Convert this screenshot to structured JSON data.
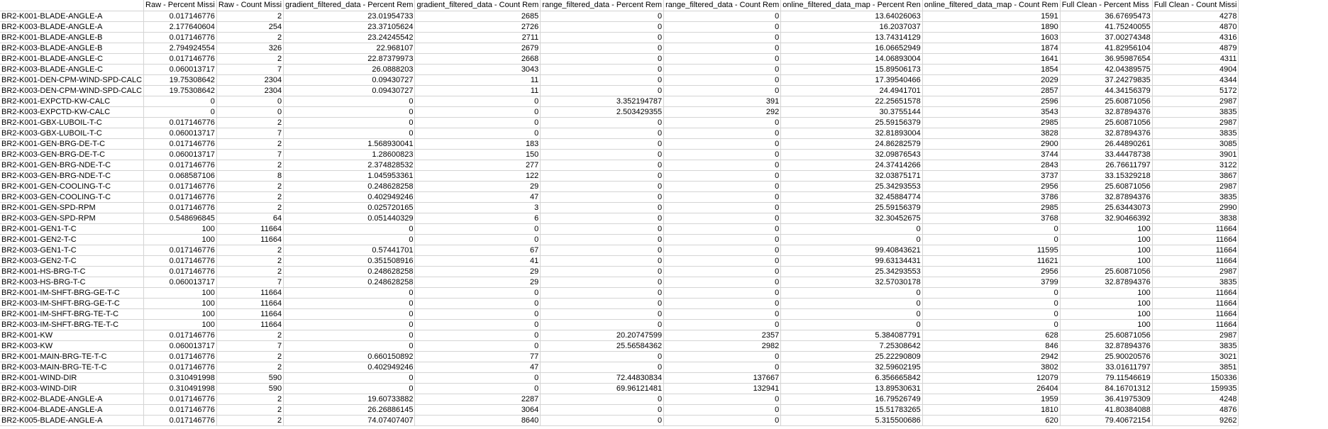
{
  "headers": [
    "",
    "Raw - Percent Missi",
    "Raw - Count Missi",
    "gradient_filtered_data - Percent Rem",
    "gradient_filtered_data - Count Rem",
    "range_filtered_data - Percent Rem",
    "range_filtered_data - Count Rem",
    "online_filtered_data_map - Percent Ren",
    "online_filtered_data_map - Count Rem",
    "Full Clean - Percent Miss",
    "Full Clean - Count Missi"
  ],
  "rows": [
    [
      "BR2-K001-BLADE-ANGLE-A",
      "0.017146776",
      "2",
      "23.01954733",
      "2685",
      "0",
      "0",
      "13.64026063",
      "1591",
      "36.67695473",
      "4278"
    ],
    [
      "BR2-K003-BLADE-ANGLE-A",
      "2.177640604",
      "254",
      "23.37105624",
      "2726",
      "0",
      "0",
      "16.2037037",
      "1890",
      "41.75240055",
      "4870"
    ],
    [
      "BR2-K001-BLADE-ANGLE-B",
      "0.017146776",
      "2",
      "23.24245542",
      "2711",
      "0",
      "0",
      "13.74314129",
      "1603",
      "37.00274348",
      "4316"
    ],
    [
      "BR2-K003-BLADE-ANGLE-B",
      "2.794924554",
      "326",
      "22.968107",
      "2679",
      "0",
      "0",
      "16.06652949",
      "1874",
      "41.82956104",
      "4879"
    ],
    [
      "BR2-K001-BLADE-ANGLE-C",
      "0.017146776",
      "2",
      "22.87379973",
      "2668",
      "0",
      "0",
      "14.06893004",
      "1641",
      "36.95987654",
      "4311"
    ],
    [
      "BR2-K003-BLADE-ANGLE-C",
      "0.060013717",
      "7",
      "26.0888203",
      "3043",
      "0",
      "0",
      "15.89506173",
      "1854",
      "42.04389575",
      "4904"
    ],
    [
      "BR2-K001-DEN-CPM-WIND-SPD-CALC",
      "19.75308642",
      "2304",
      "0.09430727",
      "11",
      "0",
      "0",
      "17.39540466",
      "2029",
      "37.24279835",
      "4344"
    ],
    [
      "BR2-K003-DEN-CPM-WIND-SPD-CALC",
      "19.75308642",
      "2304",
      "0.09430727",
      "11",
      "0",
      "0",
      "24.4941701",
      "2857",
      "44.34156379",
      "5172"
    ],
    [
      "BR2-K001-EXPCTD-KW-CALC",
      "0",
      "0",
      "0",
      "0",
      "3.352194787",
      "391",
      "22.25651578",
      "2596",
      "25.60871056",
      "2987"
    ],
    [
      "BR2-K003-EXPCTD-KW-CALC",
      "0",
      "0",
      "0",
      "0",
      "2.503429355",
      "292",
      "30.3755144",
      "3543",
      "32.87894376",
      "3835"
    ],
    [
      "BR2-K001-GBX-LUBOIL-T-C",
      "0.017146776",
      "2",
      "0",
      "0",
      "0",
      "0",
      "25.59156379",
      "2985",
      "25.60871056",
      "2987"
    ],
    [
      "BR2-K003-GBX-LUBOIL-T-C",
      "0.060013717",
      "7",
      "0",
      "0",
      "0",
      "0",
      "32.81893004",
      "3828",
      "32.87894376",
      "3835"
    ],
    [
      "BR2-K001-GEN-BRG-DE-T-C",
      "0.017146776",
      "2",
      "1.568930041",
      "183",
      "0",
      "0",
      "24.86282579",
      "2900",
      "26.44890261",
      "3085"
    ],
    [
      "BR2-K003-GEN-BRG-DE-T-C",
      "0.060013717",
      "7",
      "1.28600823",
      "150",
      "0",
      "0",
      "32.09876543",
      "3744",
      "33.44478738",
      "3901"
    ],
    [
      "BR2-K001-GEN-BRG-NDE-T-C",
      "0.017146776",
      "2",
      "2.374828532",
      "277",
      "0",
      "0",
      "24.37414266",
      "2843",
      "26.76611797",
      "3122"
    ],
    [
      "BR2-K003-GEN-BRG-NDE-T-C",
      "0.068587106",
      "8",
      "1.045953361",
      "122",
      "0",
      "0",
      "32.03875171",
      "3737",
      "33.15329218",
      "3867"
    ],
    [
      "BR2-K001-GEN-COOLING-T-C",
      "0.017146776",
      "2",
      "0.248628258",
      "29",
      "0",
      "0",
      "25.34293553",
      "2956",
      "25.60871056",
      "2987"
    ],
    [
      "BR2-K003-GEN-COOLING-T-C",
      "0.017146776",
      "2",
      "0.402949246",
      "47",
      "0",
      "0",
      "32.45884774",
      "3786",
      "32.87894376",
      "3835"
    ],
    [
      "BR2-K001-GEN-SPD-RPM",
      "0.017146776",
      "2",
      "0.025720165",
      "3",
      "0",
      "0",
      "25.59156379",
      "2985",
      "25.63443073",
      "2990"
    ],
    [
      "BR2-K003-GEN-SPD-RPM",
      "0.548696845",
      "64",
      "0.051440329",
      "6",
      "0",
      "0",
      "32.30452675",
      "3768",
      "32.90466392",
      "3838"
    ],
    [
      "BR2-K001-GEN1-T-C",
      "100",
      "11664",
      "0",
      "0",
      "0",
      "0",
      "0",
      "0",
      "100",
      "11664"
    ],
    [
      "BR2-K001-GEN2-T-C",
      "100",
      "11664",
      "0",
      "0",
      "0",
      "0",
      "0",
      "0",
      "100",
      "11664"
    ],
    [
      "BR2-K003-GEN1-T-C",
      "0.017146776",
      "2",
      "0.57441701",
      "67",
      "0",
      "0",
      "99.40843621",
      "11595",
      "100",
      "11664"
    ],
    [
      "BR2-K003-GEN2-T-C",
      "0.017146776",
      "2",
      "0.351508916",
      "41",
      "0",
      "0",
      "99.63134431",
      "11621",
      "100",
      "11664"
    ],
    [
      "BR2-K001-HS-BRG-T-C",
      "0.017146776",
      "2",
      "0.248628258",
      "29",
      "0",
      "0",
      "25.34293553",
      "2956",
      "25.60871056",
      "2987"
    ],
    [
      "BR2-K003-HS-BRG-T-C",
      "0.060013717",
      "7",
      "0.248628258",
      "29",
      "0",
      "0",
      "32.57030178",
      "3799",
      "32.87894376",
      "3835"
    ],
    [
      "BR2-K001-IM-SHFT-BRG-GE-T-C",
      "100",
      "11664",
      "0",
      "0",
      "0",
      "0",
      "0",
      "0",
      "100",
      "11664"
    ],
    [
      "BR2-K003-IM-SHFT-BRG-GE-T-C",
      "100",
      "11664",
      "0",
      "0",
      "0",
      "0",
      "0",
      "0",
      "100",
      "11664"
    ],
    [
      "BR2-K001-IM-SHFT-BRG-TE-T-C",
      "100",
      "11664",
      "0",
      "0",
      "0",
      "0",
      "0",
      "0",
      "100",
      "11664"
    ],
    [
      "BR2-K003-IM-SHFT-BRG-TE-T-C",
      "100",
      "11664",
      "0",
      "0",
      "0",
      "0",
      "0",
      "0",
      "100",
      "11664"
    ],
    [
      "BR2-K001-KW",
      "0.017146776",
      "2",
      "0",
      "0",
      "20.20747599",
      "2357",
      "5.384087791",
      "628",
      "25.60871056",
      "2987"
    ],
    [
      "BR2-K003-KW",
      "0.060013717",
      "7",
      "0",
      "0",
      "25.56584362",
      "2982",
      "7.25308642",
      "846",
      "32.87894376",
      "3835"
    ],
    [
      "BR2-K001-MAIN-BRG-TE-T-C",
      "0.017146776",
      "2",
      "0.660150892",
      "77",
      "0",
      "0",
      "25.22290809",
      "2942",
      "25.90020576",
      "3021"
    ],
    [
      "BR2-K003-MAIN-BRG-TE-T-C",
      "0.017146776",
      "2",
      "0.402949246",
      "47",
      "0",
      "0",
      "32.59602195",
      "3802",
      "33.01611797",
      "3851"
    ],
    [
      "BR2-K001-WIND-DIR",
      "0.310491998",
      "590",
      "0",
      "0",
      "72.44830834",
      "137667",
      "6.356665842",
      "12079",
      "79.11546619",
      "150336"
    ],
    [
      "BR2-K003-WIND-DIR",
      "0.310491998",
      "590",
      "0",
      "0",
      "69.96121481",
      "132941",
      "13.89530631",
      "26404",
      "84.16701312",
      "159935"
    ],
    [
      "BR2-K002-BLADE-ANGLE-A",
      "0.017146776",
      "2",
      "19.60733882",
      "2287",
      "0",
      "0",
      "16.79526749",
      "1959",
      "36.41975309",
      "4248"
    ],
    [
      "BR2-K004-BLADE-ANGLE-A",
      "0.017146776",
      "2",
      "26.26886145",
      "3064",
      "0",
      "0",
      "15.51783265",
      "1810",
      "41.80384088",
      "4876"
    ],
    [
      "BR2-K005-BLADE-ANGLE-A",
      "0.017146776",
      "2",
      "74.07407407",
      "8640",
      "0",
      "0",
      "5.315500686",
      "620",
      "79.40672154",
      "9262"
    ]
  ]
}
